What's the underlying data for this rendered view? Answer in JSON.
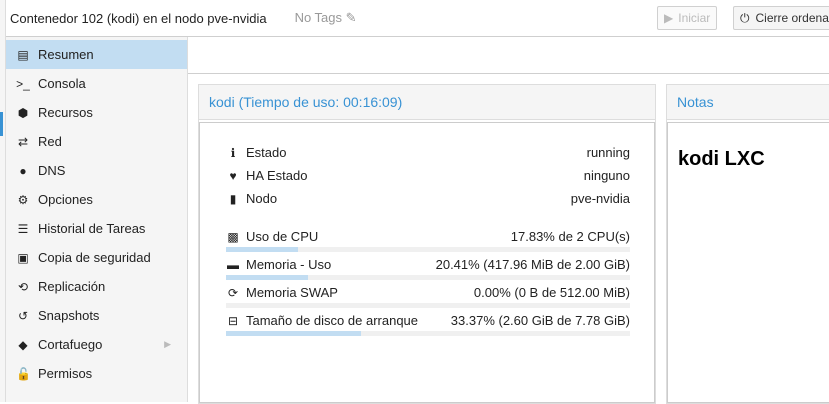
{
  "header": {
    "title": "Contenedor 102 (kodi) en el nodo pve-nvidia",
    "tags": "No Tags",
    "start_label": "Iniciar",
    "shutdown_label": "Cierre ordena"
  },
  "sidebar": {
    "items": [
      {
        "label": "Resumen",
        "icon": "book-icon",
        "glyph": "▤",
        "selected": true
      },
      {
        "label": "Consola",
        "icon": "terminal-icon",
        "glyph": ">_"
      },
      {
        "label": "Recursos",
        "icon": "cube-icon",
        "glyph": "⬢"
      },
      {
        "label": "Red",
        "icon": "exchange-icon",
        "glyph": "⇄"
      },
      {
        "label": "DNS",
        "icon": "globe-icon",
        "glyph": "●"
      },
      {
        "label": "Opciones",
        "icon": "gear-icon",
        "glyph": "⚙"
      },
      {
        "label": "Historial de Tareas",
        "icon": "list-icon",
        "glyph": "☰"
      },
      {
        "label": "Copia de seguridad",
        "icon": "floppy-icon",
        "glyph": "▣"
      },
      {
        "label": "Replicación",
        "icon": "retweet-icon",
        "glyph": "⟲"
      },
      {
        "label": "Snapshots",
        "icon": "history-icon",
        "glyph": "↺"
      },
      {
        "label": "Cortafuego",
        "icon": "shield-icon",
        "glyph": "◆",
        "submenu": true
      },
      {
        "label": "Permisos",
        "icon": "unlock-icon",
        "glyph": "🔓"
      }
    ]
  },
  "status": {
    "title": "kodi (Tiempo de uso: 00:16:09)",
    "info": [
      {
        "label": "Estado",
        "value": "running",
        "icon": "info-icon",
        "glyph": "ℹ"
      },
      {
        "label": "HA Estado",
        "value": "ninguno",
        "icon": "heartbeat-icon",
        "glyph": "♥"
      },
      {
        "label": "Nodo",
        "value": "pve-nvidia",
        "icon": "server-icon",
        "glyph": "▮"
      }
    ],
    "usage": [
      {
        "label": "Uso de CPU",
        "value": "17.83% de 2 CPU(s)",
        "percent": 17.83,
        "icon": "cpu-icon",
        "glyph": "▩"
      },
      {
        "label": "Memoria - Uso",
        "value": "20.41% (417.96 MiB de 2.00 GiB)",
        "percent": 20.41,
        "icon": "memory-icon",
        "glyph": "▬"
      },
      {
        "label": "Memoria SWAP",
        "value": "0.00% (0 B de 512.00 MiB)",
        "percent": 0,
        "icon": "refresh-icon",
        "glyph": "⟳"
      },
      {
        "label": "Tamaño de disco de arranque",
        "value": "33.37% (2.60 GiB de 7.78 GiB)",
        "percent": 33.37,
        "icon": "hdd-icon",
        "glyph": "⊟"
      }
    ]
  },
  "notes": {
    "title": "Notas",
    "content": "kodi LXC"
  }
}
